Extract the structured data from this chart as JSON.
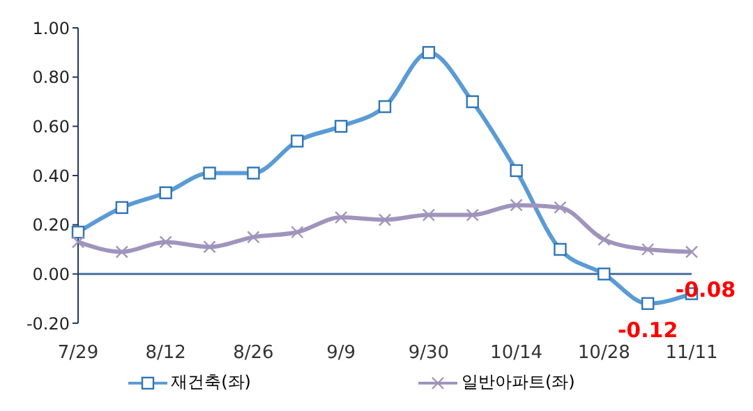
{
  "chart_data": {
    "type": "line",
    "categories": [
      "7/29",
      null,
      "8/12",
      null,
      "8/26",
      null,
      "9/9",
      null,
      "9/30",
      null,
      "10/14",
      null,
      "10/28",
      null,
      "11/11"
    ],
    "series": [
      {
        "name": "재건축(좌)",
        "color": "#5b9bd5",
        "marker": "square",
        "values": [
          0.17,
          0.27,
          0.33,
          0.41,
          0.41,
          0.54,
          0.6,
          0.68,
          0.9,
          0.7,
          0.42,
          0.1,
          0.0,
          -0.12,
          -0.08
        ],
        "value_labels": [
          null,
          null,
          null,
          null,
          null,
          null,
          null,
          null,
          null,
          null,
          null,
          null,
          null,
          "-0.12",
          "-0.08"
        ]
      },
      {
        "name": "일반아파트(좌)",
        "color": "#a094bc",
        "marker": "cross",
        "values": [
          0.13,
          0.09,
          0.13,
          0.11,
          0.15,
          0.17,
          0.23,
          0.22,
          0.24,
          0.24,
          0.28,
          0.27,
          0.14,
          0.1,
          0.09
        ]
      }
    ],
    "ylim": [
      -0.2,
      1.0
    ],
    "yticks": [
      {
        "value": -0.2,
        "label": "-0.20"
      },
      {
        "value": 0,
        "label": "0.00"
      },
      {
        "value": 0.2,
        "label": "0.20"
      },
      {
        "value": 0.4,
        "label": "0.40"
      },
      {
        "value": 0.6,
        "label": "0.60"
      },
      {
        "value": 0.8,
        "label": "0.80"
      },
      {
        "value": 1.0,
        "label": "1.00"
      }
    ],
    "ref_lines": [
      {
        "axis": "y",
        "value": 0,
        "color": "#4a6fa0"
      }
    ],
    "grid": false,
    "legend": "bottom",
    "line_style": "solid"
  }
}
